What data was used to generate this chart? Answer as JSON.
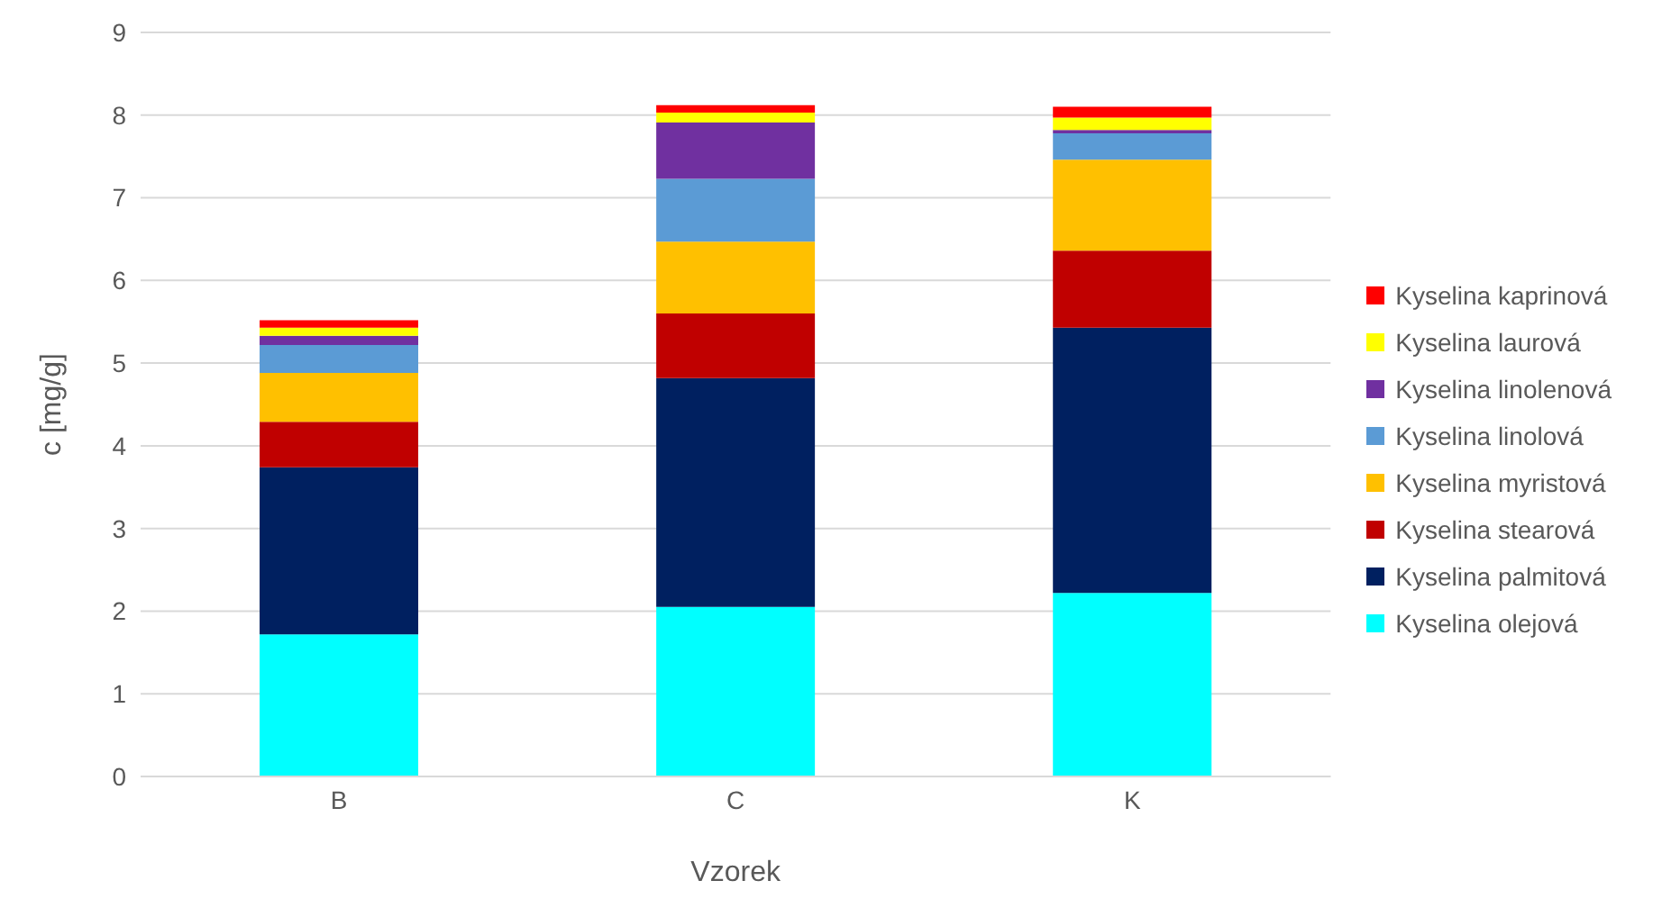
{
  "chart_data": {
    "type": "bar",
    "stacked": true,
    "xlabel": "Vzorek",
    "ylabel": "c [mg/g]",
    "categories": [
      "B",
      "C",
      "K"
    ],
    "series": [
      {
        "name": "Kyselina olejová",
        "color": "#00ffff",
        "values": [
          1.72,
          2.05,
          2.22
        ]
      },
      {
        "name": "Kyselina palmitová",
        "color": "#002060",
        "values": [
          2.02,
          2.77,
          3.21
        ]
      },
      {
        "name": "Kyselina stearová",
        "color": "#c00000",
        "values": [
          0.55,
          0.78,
          0.93
        ]
      },
      {
        "name": "Kyselina myristová",
        "color": "#ffc000",
        "values": [
          0.59,
          0.87,
          1.1
        ]
      },
      {
        "name": "Kyselina linolová",
        "color": "#5b9bd5",
        "values": [
          0.34,
          0.76,
          0.32
        ]
      },
      {
        "name": "Kyselina linolenová",
        "color": "#7030a0",
        "values": [
          0.11,
          0.68,
          0.04
        ]
      },
      {
        "name": "Kyselina laurová",
        "color": "#ffff00",
        "values": [
          0.1,
          0.12,
          0.15
        ]
      },
      {
        "name": "Kyselina kaprinová",
        "color": "#ff0000",
        "values": [
          0.09,
          0.09,
          0.13
        ]
      }
    ],
    "ylim": [
      0,
      9
    ],
    "yticks": [
      0,
      1,
      2,
      3,
      4,
      5,
      6,
      7,
      8,
      9
    ],
    "grid": "y",
    "legend": "right"
  }
}
